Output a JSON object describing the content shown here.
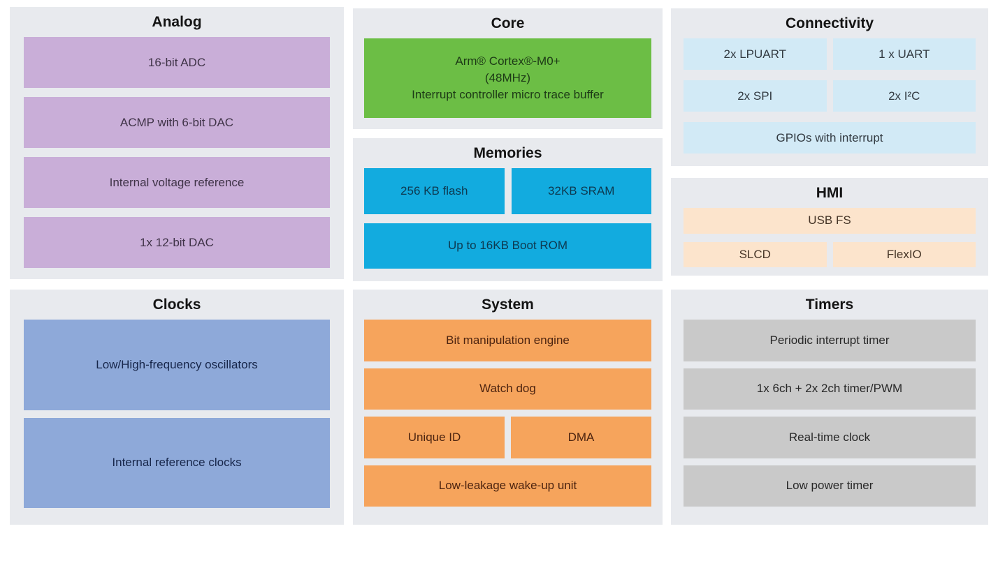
{
  "panels": {
    "analog": {
      "title": "Analog",
      "color": "#c9aed8",
      "blocks": [
        "16-bit ADC",
        "ACMP with 6-bit DAC",
        "Internal voltage reference",
        "1x 12-bit DAC"
      ]
    },
    "core": {
      "title": "Core",
      "color": "#6cbe45",
      "block_lines": [
        "Arm® Cortex®-M0+",
        "(48MHz)",
        "Interrupt controller micro trace buffer"
      ]
    },
    "memories": {
      "title": "Memories",
      "color": "#12abdf",
      "row1": [
        "256 KB flash",
        "32KB SRAM"
      ],
      "row2": "Up to 16KB Boot ROM"
    },
    "connectivity": {
      "title": "Connectivity",
      "color": "#d2eaf6",
      "row1": [
        "2x LPUART",
        "1 x UART"
      ],
      "row2": [
        "2x SPI",
        "2x I²C"
      ],
      "row3": "GPIOs with interrupt"
    },
    "hmi": {
      "title": "HMI",
      "color": "#fce4cc",
      "row1": "USB FS",
      "row2": [
        "SLCD",
        "FlexIO"
      ]
    },
    "clocks": {
      "title": "Clocks",
      "color": "#8ea9d9",
      "blocks": [
        "Low/High-frequency oscillators",
        "Internal reference clocks"
      ]
    },
    "system": {
      "title": "System",
      "color": "#f6a45c",
      "block1": "Bit manipulation engine",
      "block2": "Watch dog",
      "row3": [
        "Unique ID",
        "DMA"
      ],
      "block4": "Low-leakage wake-up unit"
    },
    "timers": {
      "title": "Timers",
      "color": "#c9c9c9",
      "blocks": [
        "Periodic interrupt timer",
        "1x 6ch + 2x 2ch timer/PWM",
        "Real-time clock",
        "Low power timer"
      ]
    }
  }
}
